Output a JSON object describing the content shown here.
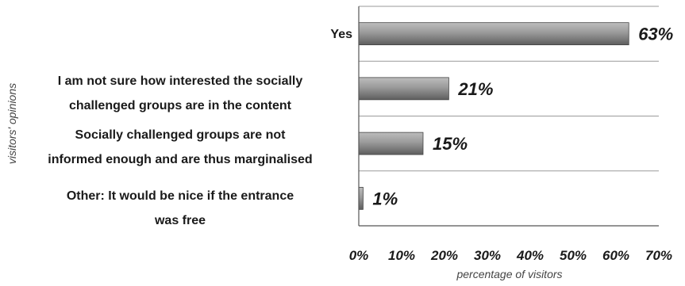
{
  "chart_data": {
    "type": "bar",
    "orientation": "horizontal",
    "categories": [
      [
        "Yes"
      ],
      [
        "I am not sure how interested the socially",
        "challenged groups are in the content"
      ],
      [
        "Socially challenged groups are not",
        "informed enough and are thus marginalised"
      ],
      [
        "Other: It would be nice if the entrance",
        "was free"
      ]
    ],
    "values": [
      63,
      21,
      15,
      1
    ],
    "value_labels": [
      "63%",
      "21%",
      "15%",
      "1%"
    ],
    "xticks": [
      "0%",
      "10%",
      "20%",
      "30%",
      "40%",
      "50%",
      "60%",
      "70%"
    ],
    "xlim": [
      0,
      70
    ],
    "xlabel": "percentage of visitors",
    "ylabel": "visitors' opinions",
    "grid": "horizontal",
    "legend": "none",
    "bar_color": "#8c8c8c"
  }
}
